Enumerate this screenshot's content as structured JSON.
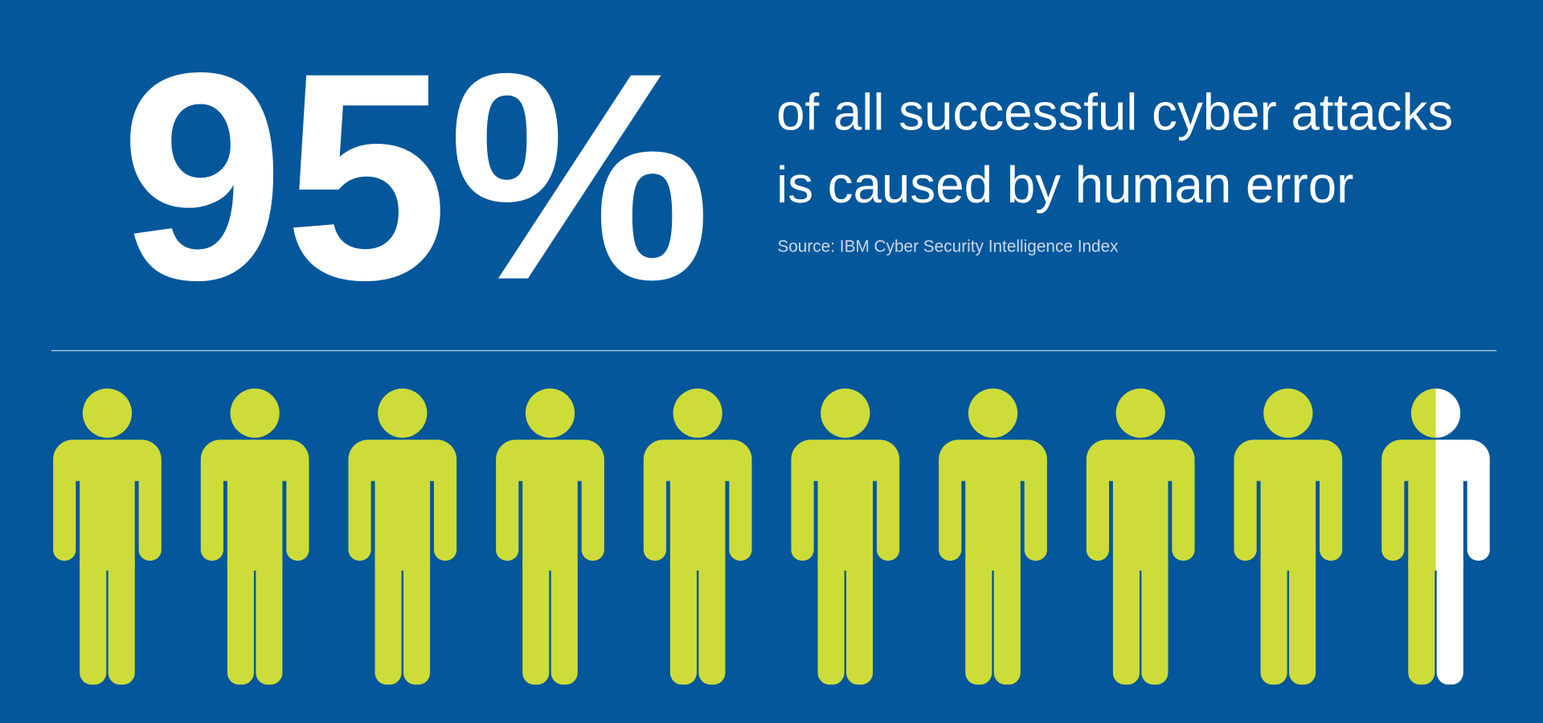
{
  "chart_data": {
    "type": "pictograph",
    "values": [
      95
    ],
    "value_labels": [
      "95%"
    ],
    "ylim": [
      0,
      100
    ],
    "text": [
      "of all successful cyber attacks",
      "is caused by human error"
    ],
    "source": "Source: IBM Cyber Security Intelligence Index",
    "color": "#cddc39",
    "rest_color": "#ffffff"
  }
}
